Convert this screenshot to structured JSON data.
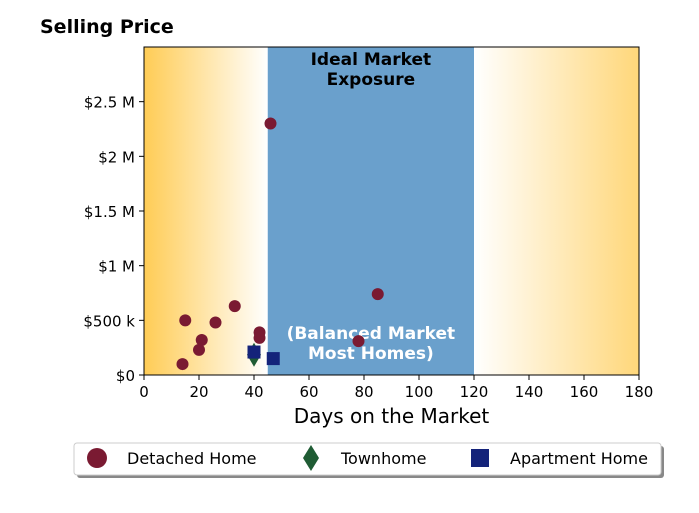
{
  "chart_data": {
    "type": "scatter",
    "title": "Selling Price",
    "xlabel": "Days on the Market",
    "ylabel": "",
    "xlim": [
      0,
      180
    ],
    "ylim": [
      0,
      3000000
    ],
    "xticks": [
      0,
      20,
      40,
      60,
      80,
      100,
      120,
      140,
      160,
      180
    ],
    "xtick_labels": [
      "0",
      "20",
      "40",
      "60",
      "80",
      "100",
      "120",
      "140",
      "160",
      "180"
    ],
    "yticks": [
      0,
      500000,
      1000000,
      1500000,
      2000000,
      2500000
    ],
    "ytick_labels": [
      "$0",
      "$500 k",
      "$1 M",
      "$1.5 M",
      "$2 M",
      "$2.5 M"
    ],
    "grid": false,
    "legend_position": "bottom",
    "background": {
      "left_gradient_color": "#ffcc55",
      "right_gradient_color": "#ffd77a",
      "ideal_band": {
        "x_start": 45,
        "x_end": 120,
        "color": "#6aa0cc"
      }
    },
    "annotations": [
      {
        "text_lines": [
          "Ideal Market",
          "Exposure"
        ],
        "color": "#000000"
      },
      {
        "text_lines": [
          "(Balanced Market",
          "Most Homes)"
        ],
        "color": "#ffffff"
      }
    ],
    "series": [
      {
        "name": "Detached Home",
        "marker": "circle",
        "color": "#7a1a32",
        "points": [
          {
            "x": 14,
            "y": 100000
          },
          {
            "x": 15,
            "y": 500000
          },
          {
            "x": 20,
            "y": 230000
          },
          {
            "x": 21,
            "y": 320000
          },
          {
            "x": 26,
            "y": 480000
          },
          {
            "x": 33,
            "y": 630000
          },
          {
            "x": 42,
            "y": 390000
          },
          {
            "x": 42,
            "y": 340000
          },
          {
            "x": 46,
            "y": 2300000
          },
          {
            "x": 78,
            "y": 310000
          },
          {
            "x": 85,
            "y": 740000
          }
        ]
      },
      {
        "name": "Townhome",
        "marker": "diamond",
        "color": "#1f5c34",
        "points": [
          {
            "x": 40,
            "y": 185000
          }
        ]
      },
      {
        "name": "Apartment Home",
        "marker": "square",
        "color": "#14237a",
        "points": [
          {
            "x": 40,
            "y": 210000
          },
          {
            "x": 47,
            "y": 150000
          }
        ]
      }
    ]
  }
}
